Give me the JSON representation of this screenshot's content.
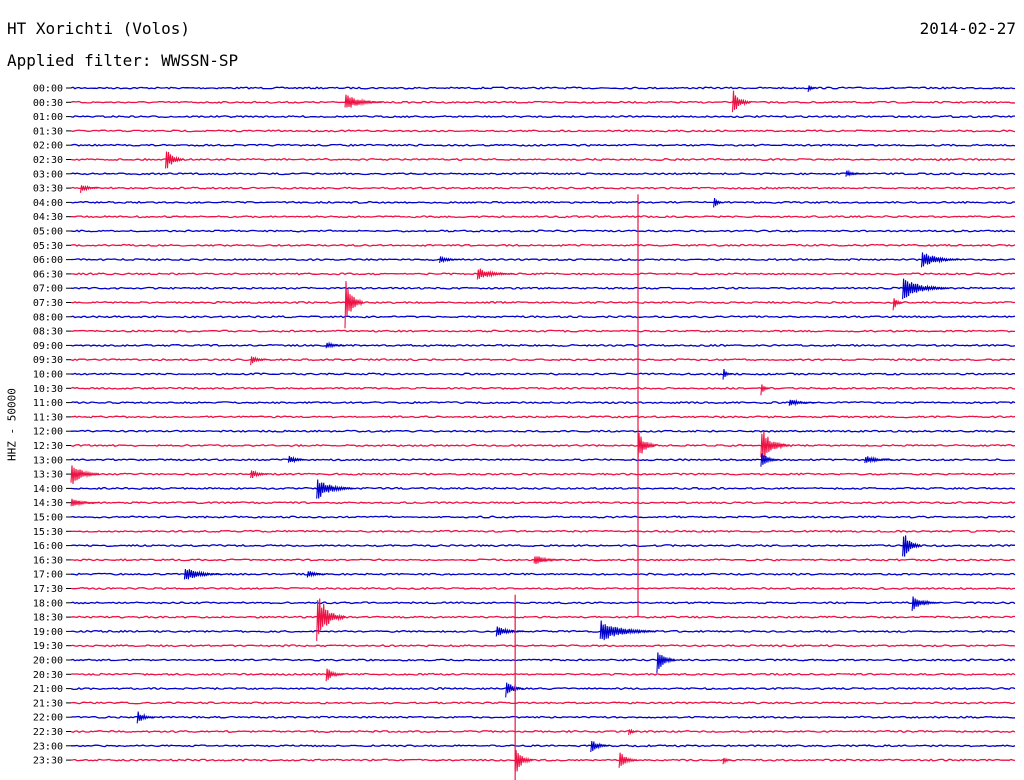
{
  "header": {
    "title": "HT Xorichti (Volos)",
    "date": "2014-02-27",
    "filter": "Applied filter: WWSSN-SP"
  },
  "chart_data": {
    "type": "line",
    "title": "HT Xorichti (Volos)",
    "ylabel": "HHZ - 50000",
    "colors": [
      "#0000cc",
      "#ee1144"
    ],
    "tick_labels": [
      "00:00",
      "00:30",
      "01:00",
      "01:30",
      "02:00",
      "02:30",
      "03:00",
      "03:30",
      "04:00",
      "04:30",
      "05:00",
      "05:30",
      "06:00",
      "06:30",
      "07:00",
      "07:30",
      "08:00",
      "08:30",
      "09:00",
      "09:30",
      "10:00",
      "10:30",
      "11:00",
      "11:30",
      "12:00",
      "12:30",
      "13:00",
      "13:30",
      "14:00",
      "14:30",
      "15:00",
      "15:30",
      "16:00",
      "16:30",
      "17:00",
      "17:30",
      "18:00",
      "18:30",
      "19:00",
      "19:30",
      "20:00",
      "20:30",
      "21:00",
      "21:30",
      "22:00",
      "22:30",
      "23:00",
      "23:30"
    ],
    "events": [
      {
        "row": 0,
        "x": 0.78,
        "amp": 4,
        "dur": 0.01
      },
      {
        "row": 1,
        "x": 0.29,
        "amp": 9,
        "dur": 0.04
      },
      {
        "row": 1,
        "x": 0.7,
        "amp": 14,
        "dur": 0.02
      },
      {
        "row": 5,
        "x": 0.1,
        "amp": 14,
        "dur": 0.02
      },
      {
        "row": 6,
        "x": 0.82,
        "amp": 4,
        "dur": 0.02
      },
      {
        "row": 7,
        "x": 0.01,
        "amp": 5,
        "dur": 0.02
      },
      {
        "row": 8,
        "x": 0.68,
        "amp": 7,
        "dur": 0.01
      },
      {
        "row": 12,
        "x": 0.39,
        "amp": 5,
        "dur": 0.02
      },
      {
        "row": 12,
        "x": 0.9,
        "amp": 10,
        "dur": 0.04
      },
      {
        "row": 13,
        "x": 0.43,
        "amp": 7,
        "dur": 0.04
      },
      {
        "row": 14,
        "x": 0.88,
        "amp": 12,
        "dur": 0.05
      },
      {
        "row": 15,
        "x": 0.29,
        "amp": 28,
        "dur": 0.02
      },
      {
        "row": 15,
        "x": 0.87,
        "amp": 10,
        "dur": 0.01
      },
      {
        "row": 18,
        "x": 0.27,
        "amp": 4,
        "dur": 0.02
      },
      {
        "row": 19,
        "x": 0.19,
        "amp": 6,
        "dur": 0.02
      },
      {
        "row": 20,
        "x": 0.69,
        "amp": 7,
        "dur": 0.01
      },
      {
        "row": 21,
        "x": 0.73,
        "amp": 7,
        "dur": 0.01
      },
      {
        "row": 22,
        "x": 0.76,
        "amp": 4,
        "dur": 0.03
      },
      {
        "row": 25,
        "x": 0.6,
        "amp": 16,
        "dur": 0.02
      },
      {
        "row": 25,
        "x": 0.73,
        "amp": 20,
        "dur": 0.03
      },
      {
        "row": 26,
        "x": 0.23,
        "amp": 5,
        "dur": 0.02
      },
      {
        "row": 26,
        "x": 0.73,
        "amp": 9,
        "dur": 0.02
      },
      {
        "row": 26,
        "x": 0.84,
        "amp": 5,
        "dur": 0.03
      },
      {
        "row": 27,
        "x": 0.0,
        "amp": 14,
        "dur": 0.03
      },
      {
        "row": 27,
        "x": 0.19,
        "amp": 6,
        "dur": 0.02
      },
      {
        "row": 28,
        "x": 0.26,
        "amp": 12,
        "dur": 0.04
      },
      {
        "row": 29,
        "x": 0.0,
        "amp": 5,
        "dur": 0.03
      },
      {
        "row": 32,
        "x": 0.88,
        "amp": 18,
        "dur": 0.02
      },
      {
        "row": 33,
        "x": 0.49,
        "amp": 6,
        "dur": 0.03
      },
      {
        "row": 34,
        "x": 0.12,
        "amp": 8,
        "dur": 0.04
      },
      {
        "row": 34,
        "x": 0.25,
        "amp": 5,
        "dur": 0.02
      },
      {
        "row": 36,
        "x": 0.89,
        "amp": 9,
        "dur": 0.03
      },
      {
        "row": 37,
        "x": 0.26,
        "amp": 30,
        "dur": 0.03
      },
      {
        "row": 38,
        "x": 0.45,
        "amp": 6,
        "dur": 0.03
      },
      {
        "row": 38,
        "x": 0.56,
        "amp": 13,
        "dur": 0.06
      },
      {
        "row": 40,
        "x": 0.62,
        "amp": 14,
        "dur": 0.02
      },
      {
        "row": 41,
        "x": 0.27,
        "amp": 8,
        "dur": 0.02
      },
      {
        "row": 42,
        "x": 0.46,
        "amp": 10,
        "dur": 0.02
      },
      {
        "row": 44,
        "x": 0.07,
        "amp": 7,
        "dur": 0.02
      },
      {
        "row": 45,
        "x": 0.59,
        "amp": 5,
        "dur": 0.01
      },
      {
        "row": 46,
        "x": 0.55,
        "amp": 8,
        "dur": 0.02
      },
      {
        "row": 47,
        "x": 0.47,
        "amp": 16,
        "dur": 0.02
      },
      {
        "row": 47,
        "x": 0.58,
        "amp": 11,
        "dur": 0.02
      },
      {
        "row": 47,
        "x": 0.69,
        "amp": 5,
        "dur": 0.01
      }
    ],
    "spikes": [
      {
        "row": 8,
        "x": 0.6,
        "reach": 29
      },
      {
        "row": 36,
        "x": 0.47,
        "reach": 13
      }
    ]
  }
}
